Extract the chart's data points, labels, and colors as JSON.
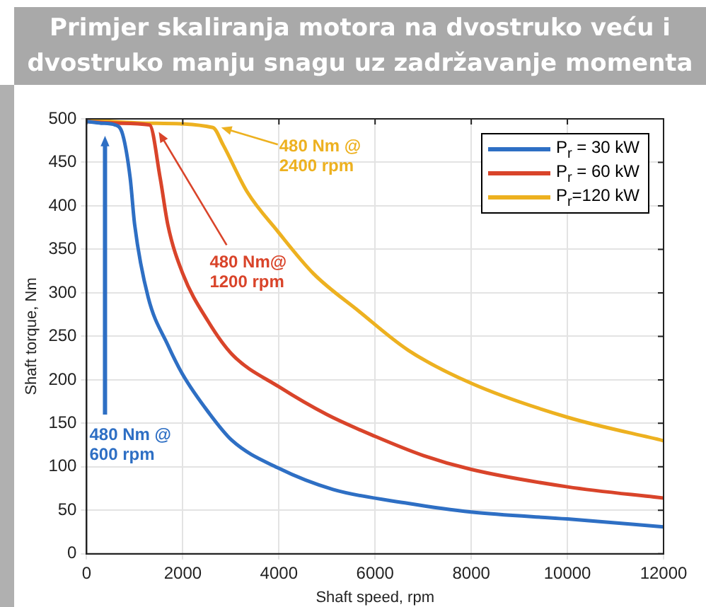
{
  "chart_data": {
    "type": "line",
    "title": "Primjer skaliranja motora na dvostruko veću i dvostruko manju snagu uz zadržavanje momenta",
    "xlabel": "Shaft speed, rpm",
    "ylabel": "Shaft torque, Nm",
    "xlim": [
      0,
      12000
    ],
    "xticks": [
      0,
      2000,
      4000,
      6000,
      8000,
      10000,
      12000
    ],
    "ylim": [
      0,
      500
    ],
    "yticks": [
      0,
      50,
      100,
      150,
      200,
      250,
      300,
      350,
      400,
      450,
      500
    ],
    "grid": true,
    "legend": "top right",
    "marker": "none",
    "line_style": "solid",
    "series": [
      {
        "name": "P$_{r}$ = 30 kW",
        "color": "#2e6fc4",
        "x": [
          0,
          300,
          594,
          750,
          906,
          1000,
          1280,
          1690,
          2000,
          2530,
          3030,
          3970,
          5125,
          6690,
          8000,
          10000,
          12000
        ],
        "values": [
          497,
          495,
          493,
          482,
          432,
          378,
          295,
          240,
          206,
          163,
          130,
          99,
          74,
          58,
          48,
          40,
          31
        ]
      },
      {
        "name": "P$_{r}$ = 60 kW",
        "color": "#d9442a",
        "x": [
          0,
          700,
          1310,
          1530,
          1690,
          2000,
          2530,
          3030,
          4000,
          5000,
          6000,
          7000,
          8000,
          10000,
          12000
        ],
        "values": [
          497,
          495,
          493,
          432,
          378,
          322,
          267,
          229,
          192,
          160,
          135,
          113,
          97,
          77,
          64
        ]
      },
      {
        "name": "P$_{r}$=120 kW",
        "color": "#edb120",
        "x": [
          0,
          1300,
          2625,
          2840,
          3340,
          3970,
          4720,
          5660,
          6690,
          8000,
          10000,
          12000
        ],
        "values": [
          499,
          495,
          490,
          470,
          416,
          371,
          322,
          279,
          234,
          196,
          157,
          130
        ]
      }
    ],
    "annotations": [
      "480 Nm @\n600 rpm",
      {
        "text": "480 Nm@\n1200 rpm",
        "x": 1500,
        "y": 485
      },
      {
        "text": "480 Nm @\n2400 rpm",
        "x": 2800,
        "y": 490
      }
    ]
  }
}
